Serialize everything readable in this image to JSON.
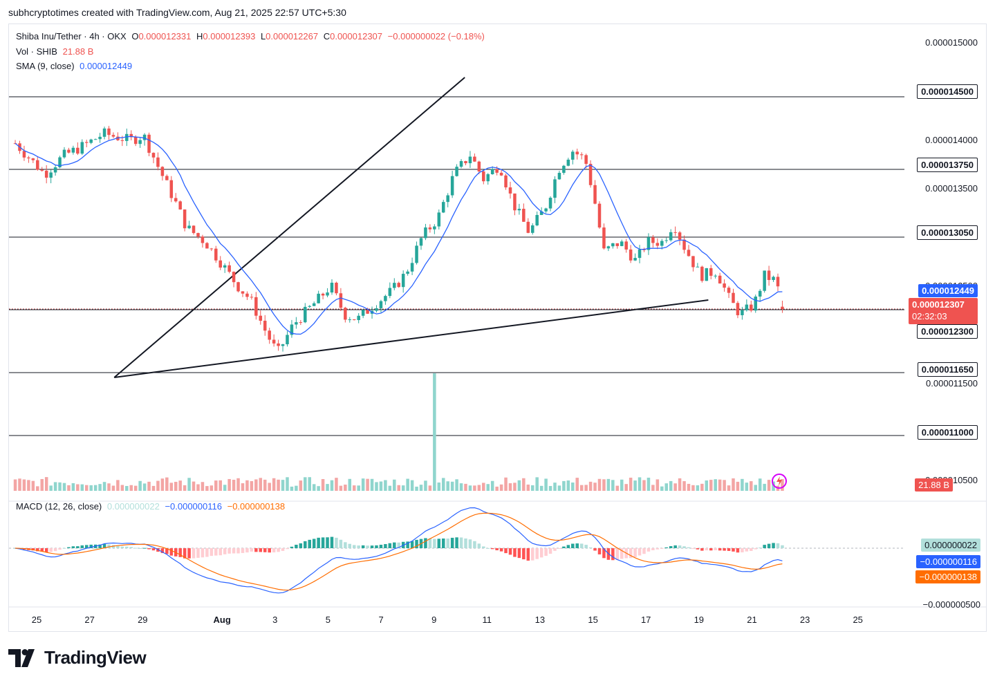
{
  "header": {
    "credit": "subhcryptotimes created with TradingView.com, Aug 21, 2025 22:57 UTC+5:30"
  },
  "legend": {
    "symbol": "Shiba Inu/Tether · 4h · OKX",
    "o_label": "O",
    "o_value": "0.000012331",
    "h_label": "H",
    "h_value": "0.000012393",
    "l_label": "L",
    "l_value": "0.000012267",
    "c_label": "C",
    "c_value": "0.000012307",
    "change": "−0.000000022 (−0.18%)",
    "vol_label": "Vol · SHIB",
    "vol_value": "21.88 B",
    "sma_label": "SMA (9, close)",
    "sma_value": "0.000012449",
    "macd_label": "MACD (12, 26, close)",
    "macd_hist": "0.000000022",
    "macd_line": "−0.000000116",
    "macd_signal": "−0.000000138"
  },
  "price_axis": {
    "ticks": [
      "0.000015000",
      "0.000014000",
      "0.000013500",
      "0.000012500",
      "0.000011500",
      "0.000010500"
    ],
    "hlines": [
      "0.000014500",
      "0.000013750",
      "0.000013050",
      "0.000012300",
      "0.000011650",
      "0.000011000"
    ],
    "sma_tag": "0.000012449",
    "last_price_tag": "0.000012307",
    "countdown": "02:32:03",
    "volume_tag": "21.88 B"
  },
  "macd_axis": {
    "hist_tag": "0.000000022",
    "macd_tag": "−0.000000116",
    "signal_tag": "−0.000000138",
    "bottom_tick": "−0.000000500"
  },
  "time_axis": {
    "labels": [
      "25",
      "27",
      "29",
      "Aug",
      "3",
      "5",
      "7",
      "9",
      "11",
      "13",
      "15",
      "17",
      "19",
      "21",
      "23",
      "25"
    ]
  },
  "brand": {
    "name": "TradingView"
  },
  "colors": {
    "up": "#26a69a",
    "down": "#ef5350",
    "sma": "#2962ff",
    "macd": "#2962ff",
    "signal": "#ff6d00",
    "vol_up": "#8fd5cd",
    "vol_down": "#f3a5a4",
    "macd_tag_bg": "#b2dfdb"
  },
  "chart_data": {
    "type": "candlestick",
    "title": "Shiba Inu/Tether · 4h · OKX",
    "price_range": [
      1.025e-05,
      1.525e-05
    ],
    "horizontal_levels": [
      1.45e-05,
      1.375e-05,
      1.305e-05,
      1.23e-05,
      1.165e-05,
      1.1e-05
    ],
    "trendlines": [
      {
        "name": "rising-resistance",
        "from": {
          "bar": 2.9,
          "price": 1.16e-05
        },
        "to": {
          "bar": 16.0,
          "price": 1.47e-05
        }
      },
      {
        "name": "rising-support",
        "from": {
          "bar": 2.9,
          "price": 1.16e-05
        },
        "to": {
          "bar": 25.1,
          "price": 1.24e-05
        }
      }
    ],
    "days_range": [
      23.5,
      27.0
    ],
    "day_ticks": [
      [
        0,
        "25"
      ],
      [
        2,
        "27"
      ],
      [
        4,
        "29"
      ],
      [
        7,
        "Aug"
      ],
      [
        9,
        "3"
      ],
      [
        11,
        "5"
      ],
      [
        13,
        "7"
      ],
      [
        15,
        "9"
      ],
      [
        17,
        "11"
      ],
      [
        19,
        "13"
      ],
      [
        21,
        "15"
      ],
      [
        23,
        "17"
      ],
      [
        25,
        "19"
      ],
      [
        27,
        "21"
      ],
      [
        29,
        "23"
      ],
      [
        31,
        "25"
      ]
    ],
    "path_points": [
      [
        -0.8,
        1.402e-05
      ],
      [
        0.3,
        1.37e-05
      ],
      [
        1.0,
        1.389e-05
      ],
      [
        1.8,
        1.4e-05
      ],
      [
        2.5,
        1.412e-05
      ],
      [
        3.5,
        1.405e-05
      ],
      [
        4.0,
        1.41e-05
      ],
      [
        4.5,
        1.38e-05
      ],
      [
        5.2,
        1.34e-05
      ],
      [
        5.6,
        1.315e-05
      ],
      [
        6.3,
        1.3e-05
      ],
      [
        6.8,
        1.282e-05
      ],
      [
        7.5,
        1.255e-05
      ],
      [
        8.0,
        1.24e-05
      ],
      [
        8.6,
        1.205e-05
      ],
      [
        9.0,
        1.185e-05
      ],
      [
        9.6,
        1.215e-05
      ],
      [
        10.5,
        1.24e-05
      ],
      [
        11.0,
        1.255e-05
      ],
      [
        11.5,
        1.225e-05
      ],
      [
        12.0,
        1.22e-05
      ],
      [
        12.6,
        1.235e-05
      ],
      [
        13.3,
        1.25e-05
      ],
      [
        13.8,
        1.268e-05
      ],
      [
        14.4,
        1.305e-05
      ],
      [
        15.0,
        1.325e-05
      ],
      [
        15.6,
        1.37e-05
      ],
      [
        16.2,
        1.39e-05
      ],
      [
        16.7,
        1.365e-05
      ],
      [
        17.3,
        1.38e-05
      ],
      [
        17.8,
        1.34e-05
      ],
      [
        18.4,
        1.31e-05
      ],
      [
        19.0,
        1.335e-05
      ],
      [
        19.5,
        1.375e-05
      ],
      [
        20.0,
        1.395e-05
      ],
      [
        20.5,
        1.385e-05
      ],
      [
        20.8,
        1.35e-05
      ],
      [
        21.2,
        1.29e-05
      ],
      [
        21.8,
        1.3e-05
      ],
      [
        22.4,
        1.28e-05
      ],
      [
        22.8,
        1.3e-05
      ],
      [
        23.4,
        1.3e-05
      ],
      [
        23.8,
        1.32e-05
      ],
      [
        24.2,
        1.295e-05
      ],
      [
        24.8,
        1.265e-05
      ],
      [
        25.4,
        1.27e-05
      ],
      [
        25.9,
        1.24e-05
      ],
      [
        26.3,
        1.225e-05
      ],
      [
        26.8,
        1.235e-05
      ],
      [
        27.2,
        1.265e-05
      ],
      [
        27.6,
        1.26e-05
      ],
      [
        27.9,
        1.235e-05
      ]
    ],
    "last_candle": {
      "open": 1.2331e-05,
      "high": 1.2393e-05,
      "low": 1.2267e-05,
      "close": 1.2307e-05
    },
    "volume_spike": {
      "day": 14.8,
      "relative": 7.5
    },
    "sma_period": 9,
    "macd": {
      "fast": 12,
      "slow": 26,
      "histogram": 2.2e-08,
      "macd": -1.16e-07,
      "signal": -1.38e-07,
      "axis_min": -5e-07
    }
  }
}
